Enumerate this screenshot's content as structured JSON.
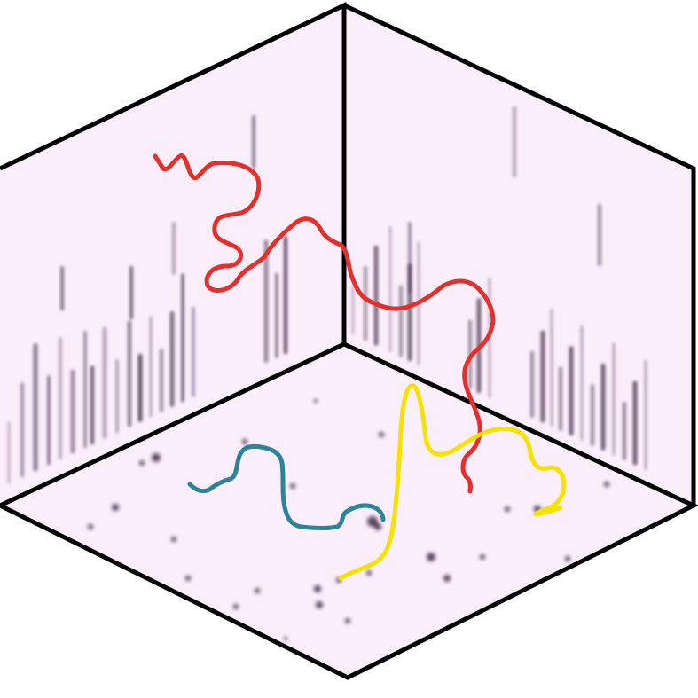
{
  "figure": {
    "description_free": true,
    "panels": [
      "left-wall",
      "right-wall",
      "floor"
    ],
    "panel_tint": "#fbeefb",
    "streak_color": "#2a1030",
    "edge_color": "#000000",
    "trajectories": [
      {
        "id": "red",
        "color": "#e2302d"
      },
      {
        "id": "yellow",
        "color": "#f7e100"
      },
      {
        "id": "teal",
        "color": "#2d8498"
      }
    ]
  }
}
